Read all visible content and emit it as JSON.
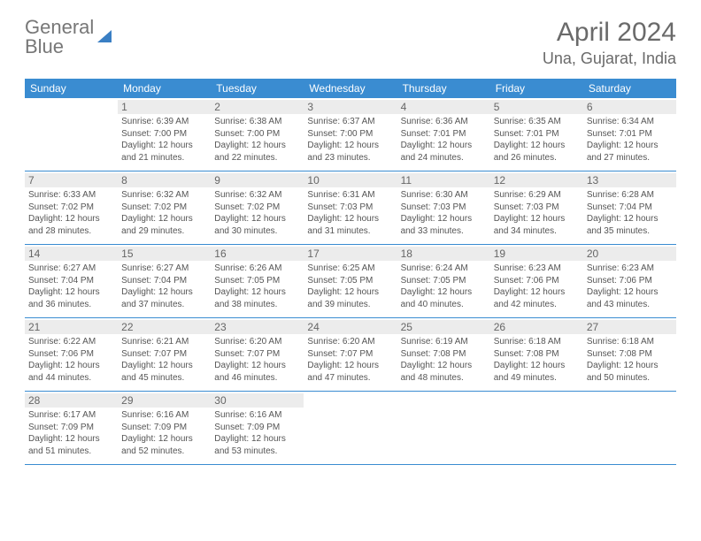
{
  "logo": {
    "line1": "General",
    "line2": "Blue"
  },
  "title": "April 2024",
  "location": "Una, Gujarat, India",
  "colors": {
    "header_bg": "#3a8cd1",
    "header_text": "#ffffff",
    "daynum_bg": "#ececec",
    "body_text": "#555555",
    "logo_blue": "#3a7fc4",
    "row_border": "#3a8cd1"
  },
  "weekdays": [
    "Sunday",
    "Monday",
    "Tuesday",
    "Wednesday",
    "Thursday",
    "Friday",
    "Saturday"
  ],
  "weeks": [
    [
      {
        "n": "",
        "sr": "",
        "ss": "",
        "d1": "",
        "d2": ""
      },
      {
        "n": "1",
        "sr": "Sunrise: 6:39 AM",
        "ss": "Sunset: 7:00 PM",
        "d1": "Daylight: 12 hours",
        "d2": "and 21 minutes."
      },
      {
        "n": "2",
        "sr": "Sunrise: 6:38 AM",
        "ss": "Sunset: 7:00 PM",
        "d1": "Daylight: 12 hours",
        "d2": "and 22 minutes."
      },
      {
        "n": "3",
        "sr": "Sunrise: 6:37 AM",
        "ss": "Sunset: 7:00 PM",
        "d1": "Daylight: 12 hours",
        "d2": "and 23 minutes."
      },
      {
        "n": "4",
        "sr": "Sunrise: 6:36 AM",
        "ss": "Sunset: 7:01 PM",
        "d1": "Daylight: 12 hours",
        "d2": "and 24 minutes."
      },
      {
        "n": "5",
        "sr": "Sunrise: 6:35 AM",
        "ss": "Sunset: 7:01 PM",
        "d1": "Daylight: 12 hours",
        "d2": "and 26 minutes."
      },
      {
        "n": "6",
        "sr": "Sunrise: 6:34 AM",
        "ss": "Sunset: 7:01 PM",
        "d1": "Daylight: 12 hours",
        "d2": "and 27 minutes."
      }
    ],
    [
      {
        "n": "7",
        "sr": "Sunrise: 6:33 AM",
        "ss": "Sunset: 7:02 PM",
        "d1": "Daylight: 12 hours",
        "d2": "and 28 minutes."
      },
      {
        "n": "8",
        "sr": "Sunrise: 6:32 AM",
        "ss": "Sunset: 7:02 PM",
        "d1": "Daylight: 12 hours",
        "d2": "and 29 minutes."
      },
      {
        "n": "9",
        "sr": "Sunrise: 6:32 AM",
        "ss": "Sunset: 7:02 PM",
        "d1": "Daylight: 12 hours",
        "d2": "and 30 minutes."
      },
      {
        "n": "10",
        "sr": "Sunrise: 6:31 AM",
        "ss": "Sunset: 7:03 PM",
        "d1": "Daylight: 12 hours",
        "d2": "and 31 minutes."
      },
      {
        "n": "11",
        "sr": "Sunrise: 6:30 AM",
        "ss": "Sunset: 7:03 PM",
        "d1": "Daylight: 12 hours",
        "d2": "and 33 minutes."
      },
      {
        "n": "12",
        "sr": "Sunrise: 6:29 AM",
        "ss": "Sunset: 7:03 PM",
        "d1": "Daylight: 12 hours",
        "d2": "and 34 minutes."
      },
      {
        "n": "13",
        "sr": "Sunrise: 6:28 AM",
        "ss": "Sunset: 7:04 PM",
        "d1": "Daylight: 12 hours",
        "d2": "and 35 minutes."
      }
    ],
    [
      {
        "n": "14",
        "sr": "Sunrise: 6:27 AM",
        "ss": "Sunset: 7:04 PM",
        "d1": "Daylight: 12 hours",
        "d2": "and 36 minutes."
      },
      {
        "n": "15",
        "sr": "Sunrise: 6:27 AM",
        "ss": "Sunset: 7:04 PM",
        "d1": "Daylight: 12 hours",
        "d2": "and 37 minutes."
      },
      {
        "n": "16",
        "sr": "Sunrise: 6:26 AM",
        "ss": "Sunset: 7:05 PM",
        "d1": "Daylight: 12 hours",
        "d2": "and 38 minutes."
      },
      {
        "n": "17",
        "sr": "Sunrise: 6:25 AM",
        "ss": "Sunset: 7:05 PM",
        "d1": "Daylight: 12 hours",
        "d2": "and 39 minutes."
      },
      {
        "n": "18",
        "sr": "Sunrise: 6:24 AM",
        "ss": "Sunset: 7:05 PM",
        "d1": "Daylight: 12 hours",
        "d2": "and 40 minutes."
      },
      {
        "n": "19",
        "sr": "Sunrise: 6:23 AM",
        "ss": "Sunset: 7:06 PM",
        "d1": "Daylight: 12 hours",
        "d2": "and 42 minutes."
      },
      {
        "n": "20",
        "sr": "Sunrise: 6:23 AM",
        "ss": "Sunset: 7:06 PM",
        "d1": "Daylight: 12 hours",
        "d2": "and 43 minutes."
      }
    ],
    [
      {
        "n": "21",
        "sr": "Sunrise: 6:22 AM",
        "ss": "Sunset: 7:06 PM",
        "d1": "Daylight: 12 hours",
        "d2": "and 44 minutes."
      },
      {
        "n": "22",
        "sr": "Sunrise: 6:21 AM",
        "ss": "Sunset: 7:07 PM",
        "d1": "Daylight: 12 hours",
        "d2": "and 45 minutes."
      },
      {
        "n": "23",
        "sr": "Sunrise: 6:20 AM",
        "ss": "Sunset: 7:07 PM",
        "d1": "Daylight: 12 hours",
        "d2": "and 46 minutes."
      },
      {
        "n": "24",
        "sr": "Sunrise: 6:20 AM",
        "ss": "Sunset: 7:07 PM",
        "d1": "Daylight: 12 hours",
        "d2": "and 47 minutes."
      },
      {
        "n": "25",
        "sr": "Sunrise: 6:19 AM",
        "ss": "Sunset: 7:08 PM",
        "d1": "Daylight: 12 hours",
        "d2": "and 48 minutes."
      },
      {
        "n": "26",
        "sr": "Sunrise: 6:18 AM",
        "ss": "Sunset: 7:08 PM",
        "d1": "Daylight: 12 hours",
        "d2": "and 49 minutes."
      },
      {
        "n": "27",
        "sr": "Sunrise: 6:18 AM",
        "ss": "Sunset: 7:08 PM",
        "d1": "Daylight: 12 hours",
        "d2": "and 50 minutes."
      }
    ],
    [
      {
        "n": "28",
        "sr": "Sunrise: 6:17 AM",
        "ss": "Sunset: 7:09 PM",
        "d1": "Daylight: 12 hours",
        "d2": "and 51 minutes."
      },
      {
        "n": "29",
        "sr": "Sunrise: 6:16 AM",
        "ss": "Sunset: 7:09 PM",
        "d1": "Daylight: 12 hours",
        "d2": "and 52 minutes."
      },
      {
        "n": "30",
        "sr": "Sunrise: 6:16 AM",
        "ss": "Sunset: 7:09 PM",
        "d1": "Daylight: 12 hours",
        "d2": "and 53 minutes."
      },
      {
        "n": "",
        "sr": "",
        "ss": "",
        "d1": "",
        "d2": ""
      },
      {
        "n": "",
        "sr": "",
        "ss": "",
        "d1": "",
        "d2": ""
      },
      {
        "n": "",
        "sr": "",
        "ss": "",
        "d1": "",
        "d2": ""
      },
      {
        "n": "",
        "sr": "",
        "ss": "",
        "d1": "",
        "d2": ""
      }
    ]
  ]
}
